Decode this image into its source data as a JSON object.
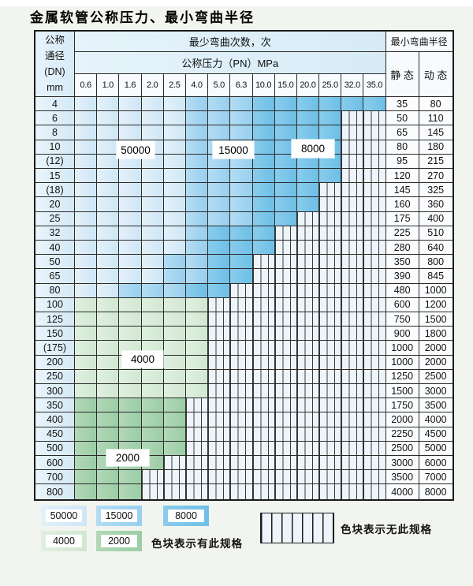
{
  "title": "金属软管公称压力、最小弯曲半径",
  "header": {
    "dn_lines": [
      "公称",
      "通径",
      "(DN)",
      "mm"
    ],
    "bend_cycles": "最少弯曲次数，次",
    "pressure": "公称压力（PN）MPa",
    "min_bend_radius": "最小弯曲半径",
    "static": "静 态",
    "dynamic": "动 态"
  },
  "overlay_labels": {
    "b50000": "50000",
    "b15000": "15000",
    "b8000": "8000",
    "g4000": "4000",
    "g2000": "2000"
  },
  "legend": {
    "items": {
      "l50000": "50000",
      "l15000": "15000",
      "l8000": "8000",
      "l4000": "4000",
      "l2000": "2000"
    },
    "available_note": "色块表示有此规格",
    "unavailable_note": "色块表示无此规格"
  },
  "colors": {
    "50000": [
      "#e3f1fa",
      "#cfe6f5"
    ],
    "15000": [
      "#b4dcf3",
      "#97cfee"
    ],
    "8000": [
      "#8accec",
      "#6dbfe6"
    ],
    "4000": [
      "#e0efe0",
      "#d1e8d1"
    ],
    "2000": [
      "#b2d8b8",
      "#9bcda4"
    ],
    "hatch_bg": "#edf4fa",
    "header_bg": "#d7ebf7",
    "grid_line": "#2b2b2b"
  },
  "chart_data": {
    "type": "table",
    "title": "金属软管公称压力、最小弯曲半径",
    "columns_pn_mpa": [
      "0.6",
      "1.0",
      "1.6",
      "2.0",
      "2.5",
      "4.0",
      "5.0",
      "6.3",
      "10.0",
      "15.0",
      "20.0",
      "25.0",
      "32.0",
      "35.0"
    ],
    "radius_columns": [
      "静 态",
      "动 态"
    ],
    "cycles_legend": [
      "50000",
      "15000",
      "8000",
      "4000",
      "2000"
    ],
    "notes": {
      "colored": "色块表示有此规格",
      "hatched": "色块表示无此规格"
    },
    "rows": [
      {
        "dn": "4",
        "static": 35,
        "dynamic": 80,
        "regions": [
          {
            "cycles": "50000",
            "cols": [
              0,
              4
            ]
          },
          {
            "cycles": "15000",
            "cols": [
              5,
              7
            ]
          },
          {
            "cycles": "8000",
            "cols": [
              8,
              13
            ]
          }
        ]
      },
      {
        "dn": "6",
        "static": 50,
        "dynamic": 110,
        "regions": [
          {
            "cycles": "50000",
            "cols": [
              0,
              4
            ]
          },
          {
            "cycles": "15000",
            "cols": [
              5,
              7
            ]
          },
          {
            "cycles": "8000",
            "cols": [
              8,
              11
            ]
          }
        ]
      },
      {
        "dn": "8",
        "static": 65,
        "dynamic": 145,
        "regions": [
          {
            "cycles": "50000",
            "cols": [
              0,
              4
            ]
          },
          {
            "cycles": "15000",
            "cols": [
              5,
              7
            ]
          },
          {
            "cycles": "8000",
            "cols": [
              8,
              11
            ]
          }
        ]
      },
      {
        "dn": "10",
        "static": 80,
        "dynamic": 180,
        "regions": [
          {
            "cycles": "50000",
            "cols": [
              0,
              4
            ]
          },
          {
            "cycles": "15000",
            "cols": [
              5,
              7
            ]
          },
          {
            "cycles": "8000",
            "cols": [
              8,
              11
            ]
          }
        ]
      },
      {
        "dn": "(12)",
        "static": 95,
        "dynamic": 215,
        "regions": [
          {
            "cycles": "50000",
            "cols": [
              0,
              4
            ]
          },
          {
            "cycles": "15000",
            "cols": [
              5,
              7
            ]
          },
          {
            "cycles": "8000",
            "cols": [
              8,
              11
            ]
          }
        ]
      },
      {
        "dn": "15",
        "static": 120,
        "dynamic": 270,
        "regions": [
          {
            "cycles": "50000",
            "cols": [
              0,
              4
            ]
          },
          {
            "cycles": "15000",
            "cols": [
              5,
              7
            ]
          },
          {
            "cycles": "8000",
            "cols": [
              8,
              11
            ]
          }
        ]
      },
      {
        "dn": "(18)",
        "static": 145,
        "dynamic": 325,
        "regions": [
          {
            "cycles": "50000",
            "cols": [
              0,
              4
            ]
          },
          {
            "cycles": "15000",
            "cols": [
              5,
              7
            ]
          },
          {
            "cycles": "8000",
            "cols": [
              8,
              10
            ]
          }
        ]
      },
      {
        "dn": "20",
        "static": 160,
        "dynamic": 360,
        "regions": [
          {
            "cycles": "50000",
            "cols": [
              0,
              4
            ]
          },
          {
            "cycles": "15000",
            "cols": [
              5,
              7
            ]
          },
          {
            "cycles": "8000",
            "cols": [
              8,
              10
            ]
          }
        ]
      },
      {
        "dn": "25",
        "static": 175,
        "dynamic": 400,
        "regions": [
          {
            "cycles": "50000",
            "cols": [
              0,
              4
            ]
          },
          {
            "cycles": "15000",
            "cols": [
              5,
              7
            ]
          },
          {
            "cycles": "8000",
            "cols": [
              8,
              9
            ]
          }
        ]
      },
      {
        "dn": "32",
        "static": 225,
        "dynamic": 510,
        "regions": [
          {
            "cycles": "50000",
            "cols": [
              0,
              4
            ]
          },
          {
            "cycles": "15000",
            "cols": [
              5,
              5
            ]
          },
          {
            "cycles": "8000",
            "cols": [
              6,
              8
            ]
          }
        ]
      },
      {
        "dn": "40",
        "static": 280,
        "dynamic": 640,
        "regions": [
          {
            "cycles": "50000",
            "cols": [
              0,
              4
            ]
          },
          {
            "cycles": "15000",
            "cols": [
              5,
              5
            ]
          },
          {
            "cycles": "8000",
            "cols": [
              6,
              8
            ]
          }
        ]
      },
      {
        "dn": "50",
        "static": 350,
        "dynamic": 800,
        "regions": [
          {
            "cycles": "50000",
            "cols": [
              0,
              3
            ]
          },
          {
            "cycles": "15000",
            "cols": [
              4,
              5
            ]
          },
          {
            "cycles": "8000",
            "cols": [
              6,
              7
            ]
          }
        ]
      },
      {
        "dn": "65",
        "static": 390,
        "dynamic": 845,
        "regions": [
          {
            "cycles": "50000",
            "cols": [
              0,
              3
            ]
          },
          {
            "cycles": "15000",
            "cols": [
              4,
              5
            ]
          },
          {
            "cycles": "8000",
            "cols": [
              6,
              7
            ]
          }
        ]
      },
      {
        "dn": "80",
        "static": 480,
        "dynamic": 1000,
        "regions": [
          {
            "cycles": "50000",
            "cols": [
              0,
              1
            ]
          },
          {
            "cycles": "15000",
            "cols": [
              2,
              4
            ]
          },
          {
            "cycles": "8000",
            "cols": [
              5,
              6
            ]
          }
        ]
      },
      {
        "dn": "100",
        "static": 600,
        "dynamic": 1200,
        "regions": [
          {
            "cycles": "4000",
            "cols": [
              0,
              5
            ]
          }
        ]
      },
      {
        "dn": "125",
        "static": 750,
        "dynamic": 1500,
        "regions": [
          {
            "cycles": "4000",
            "cols": [
              0,
              5
            ]
          }
        ]
      },
      {
        "dn": "150",
        "static": 900,
        "dynamic": 1800,
        "regions": [
          {
            "cycles": "4000",
            "cols": [
              0,
              5
            ]
          }
        ]
      },
      {
        "dn": "(175)",
        "static": 1000,
        "dynamic": 2000,
        "regions": [
          {
            "cycles": "4000",
            "cols": [
              0,
              5
            ]
          }
        ]
      },
      {
        "dn": "200",
        "static": 1000,
        "dynamic": 2000,
        "regions": [
          {
            "cycles": "4000",
            "cols": [
              0,
              5
            ]
          }
        ]
      },
      {
        "dn": "250",
        "static": 1250,
        "dynamic": 2500,
        "regions": [
          {
            "cycles": "4000",
            "cols": [
              0,
              5
            ]
          }
        ]
      },
      {
        "dn": "300",
        "static": 1500,
        "dynamic": 3000,
        "regions": [
          {
            "cycles": "4000",
            "cols": [
              0,
              5
            ]
          }
        ]
      },
      {
        "dn": "350",
        "static": 1750,
        "dynamic": 3500,
        "regions": [
          {
            "cycles": "2000",
            "cols": [
              0,
              4
            ]
          }
        ]
      },
      {
        "dn": "400",
        "static": 2000,
        "dynamic": 4000,
        "regions": [
          {
            "cycles": "2000",
            "cols": [
              0,
              4
            ]
          }
        ]
      },
      {
        "dn": "450",
        "static": 2250,
        "dynamic": 4500,
        "regions": [
          {
            "cycles": "2000",
            "cols": [
              0,
              4
            ]
          }
        ]
      },
      {
        "dn": "500",
        "static": 2500,
        "dynamic": 5000,
        "regions": [
          {
            "cycles": "2000",
            "cols": [
              0,
              4
            ]
          }
        ]
      },
      {
        "dn": "600",
        "static": 3000,
        "dynamic": 6000,
        "regions": [
          {
            "cycles": "2000",
            "cols": [
              0,
              3
            ]
          }
        ]
      },
      {
        "dn": "700",
        "static": 3500,
        "dynamic": 7000,
        "regions": [
          {
            "cycles": "2000",
            "cols": [
              0,
              2
            ]
          }
        ]
      },
      {
        "dn": "800",
        "static": 4000,
        "dynamic": 8000,
        "regions": [
          {
            "cycles": "2000",
            "cols": [
              0,
              2
            ]
          }
        ]
      }
    ]
  }
}
